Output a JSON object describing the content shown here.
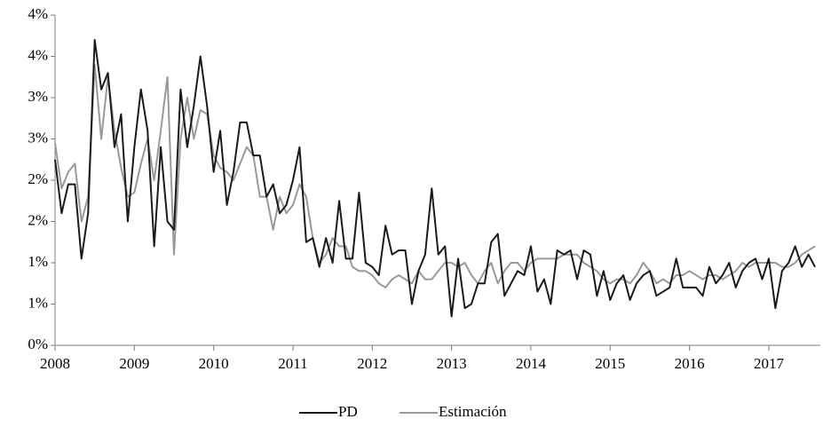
{
  "chart_data": {
    "type": "line",
    "x": [
      2008,
      2008.083,
      2008.167,
      2008.25,
      2008.333,
      2008.417,
      2008.5,
      2008.583,
      2008.667,
      2008.75,
      2008.833,
      2008.917,
      2009,
      2009.083,
      2009.167,
      2009.25,
      2009.333,
      2009.417,
      2009.5,
      2009.583,
      2009.667,
      2009.75,
      2009.833,
      2009.917,
      2010,
      2010.083,
      2010.167,
      2010.25,
      2010.333,
      2010.417,
      2010.5,
      2010.583,
      2010.667,
      2010.75,
      2010.833,
      2010.917,
      2011,
      2011.083,
      2011.167,
      2011.25,
      2011.333,
      2011.417,
      2011.5,
      2011.583,
      2011.667,
      2011.75,
      2011.833,
      2011.917,
      2012,
      2012.083,
      2012.167,
      2012.25,
      2012.333,
      2012.417,
      2012.5,
      2012.583,
      2012.667,
      2012.75,
      2012.833,
      2012.917,
      2013,
      2013.083,
      2013.167,
      2013.25,
      2013.333,
      2013.417,
      2013.5,
      2013.583,
      2013.667,
      2013.75,
      2013.833,
      2013.917,
      2014,
      2014.083,
      2014.167,
      2014.25,
      2014.333,
      2014.417,
      2014.5,
      2014.583,
      2014.667,
      2014.75,
      2014.833,
      2014.917,
      2015,
      2015.083,
      2015.167,
      2015.25,
      2015.333,
      2015.417,
      2015.5,
      2015.583,
      2015.667,
      2015.75,
      2015.833,
      2015.917,
      2016,
      2016.083,
      2016.167,
      2016.25,
      2016.333,
      2016.417,
      2016.5,
      2016.583,
      2016.667,
      2016.75,
      2016.833,
      2016.917,
      2017,
      2017.083,
      2017.167,
      2017.25,
      2017.333,
      2017.417,
      2017.5,
      2017.583
    ],
    "series": [
      {
        "name": "PD",
        "color": "#1a1a1a",
        "values": [
          2.25,
          1.6,
          1.95,
          1.95,
          1.05,
          1.6,
          3.7,
          3.1,
          3.3,
          2.4,
          2.8,
          1.5,
          2.4,
          3.1,
          2.6,
          1.2,
          2.4,
          1.5,
          1.4,
          3.1,
          2.4,
          2.9,
          3.5,
          2.9,
          2.1,
          2.6,
          1.7,
          2.1,
          2.7,
          2.7,
          2.3,
          2.3,
          1.8,
          1.95,
          1.6,
          1.7,
          2.0,
          2.4,
          1.25,
          1.3,
          0.95,
          1.3,
          1.0,
          1.75,
          1.05,
          1.05,
          1.85,
          1.0,
          0.95,
          0.85,
          1.45,
          1.1,
          1.15,
          1.15,
          0.5,
          0.9,
          1.1,
          1.9,
          1.1,
          1.2,
          0.35,
          1.05,
          0.45,
          0.5,
          0.75,
          0.75,
          1.25,
          1.35,
          0.6,
          0.75,
          0.9,
          0.85,
          1.2,
          0.65,
          0.8,
          0.5,
          1.15,
          1.1,
          1.15,
          0.8,
          1.15,
          1.1,
          0.6,
          0.9,
          0.55,
          0.75,
          0.85,
          0.55,
          0.75,
          0.85,
          0.9,
          0.6,
          0.65,
          0.7,
          1.05,
          0.7,
          0.7,
          0.7,
          0.6,
          0.95,
          0.75,
          0.85,
          1.0,
          0.7,
          0.9,
          1.0,
          1.05,
          0.8,
          1.05,
          0.45,
          0.9,
          1.0,
          1.2,
          0.95,
          1.1,
          0.95
        ]
      },
      {
        "name": "Estimación",
        "color": "#999999",
        "values": [
          2.45,
          1.9,
          2.1,
          2.2,
          1.5,
          1.8,
          3.4,
          2.5,
          3.25,
          2.6,
          2.15,
          1.8,
          1.85,
          2.2,
          2.5,
          2.0,
          2.6,
          3.25,
          1.1,
          2.5,
          3.0,
          2.5,
          2.85,
          2.8,
          2.3,
          2.15,
          2.1,
          2.0,
          2.2,
          2.4,
          2.3,
          1.8,
          1.8,
          1.4,
          1.8,
          1.6,
          1.7,
          1.95,
          1.8,
          1.3,
          1.0,
          1.1,
          1.3,
          1.2,
          1.2,
          0.95,
          0.9,
          0.9,
          0.85,
          0.75,
          0.7,
          0.8,
          0.85,
          0.8,
          0.75,
          0.9,
          0.8,
          0.8,
          0.9,
          1.0,
          1.0,
          0.95,
          1.0,
          0.85,
          0.75,
          0.9,
          1.0,
          0.75,
          0.9,
          1.0,
          1.0,
          0.9,
          1.0,
          1.05,
          1.05,
          1.05,
          1.05,
          1.1,
          1.1,
          1.1,
          1.0,
          0.95,
          0.9,
          0.8,
          0.75,
          0.8,
          0.8,
          0.75,
          0.85,
          1.0,
          0.9,
          0.75,
          0.8,
          0.75,
          0.85,
          0.85,
          0.9,
          0.85,
          0.8,
          0.85,
          0.85,
          0.8,
          0.85,
          0.9,
          1.0,
          0.95,
          1.0,
          1.0,
          1.0,
          1.0,
          0.95,
          0.95,
          1.0,
          1.1,
          1.15,
          1.2
        ]
      }
    ],
    "xlim": [
      2008,
      2017.65
    ],
    "xticks": [
      2008,
      2009,
      2010,
      2011,
      2012,
      2013,
      2014,
      2015,
      2016,
      2017
    ],
    "ylim": [
      0,
      4
    ],
    "yticks": [
      {
        "value": 0,
        "label": "0%"
      },
      {
        "value": 0.5,
        "label": "1%"
      },
      {
        "value": 1,
        "label": "1%"
      },
      {
        "value": 1.5,
        "label": "2%"
      },
      {
        "value": 2,
        "label": "2%"
      },
      {
        "value": 2.5,
        "label": "3%"
      },
      {
        "value": 3,
        "label": "3%"
      },
      {
        "value": 3.5,
        "label": "4%"
      },
      {
        "value": 4,
        "label": "4%"
      }
    ],
    "grid": false,
    "legend": "bottom"
  }
}
